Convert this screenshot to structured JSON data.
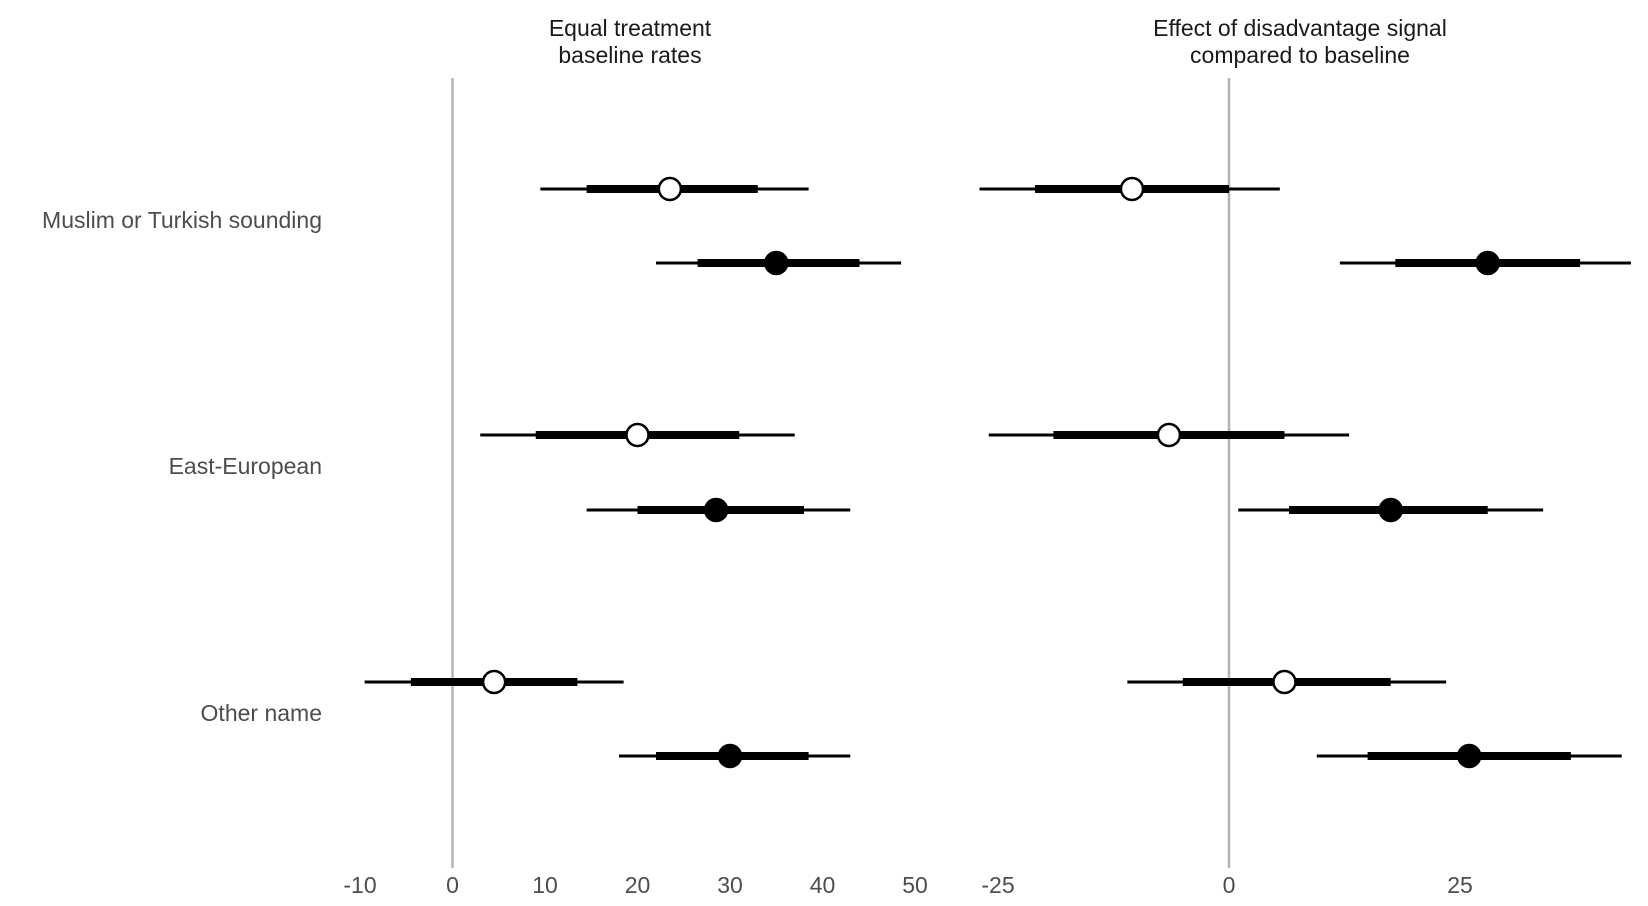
{
  "chart_data": [
    {
      "type": "scatter",
      "subtype": "interval-dot",
      "title": "Equal treatment\nbaseline rates",
      "xlim": [
        -10,
        50
      ],
      "xticks": [
        -10,
        0,
        10,
        20,
        30,
        40,
        50
      ],
      "categories": [
        "Muslim or Turkish sounding",
        "East-European",
        "Other name"
      ],
      "series": [
        {
          "marker": "open-circle",
          "values": [
            23.5,
            20,
            4.5
          ],
          "inner_interval": [
            [
              14.5,
              33
            ],
            [
              9,
              31
            ],
            [
              -4.5,
              13.5
            ]
          ],
          "outer_interval": [
            [
              9.5,
              38.5
            ],
            [
              3,
              37
            ],
            [
              -9.5,
              18.5
            ]
          ]
        },
        {
          "marker": "filled-circle",
          "values": [
            35,
            28.5,
            30
          ],
          "inner_interval": [
            [
              26.5,
              44
            ],
            [
              20,
              38
            ],
            [
              22,
              38.5
            ]
          ],
          "outer_interval": [
            [
              22,
              48.5
            ],
            [
              14.5,
              43
            ],
            [
              18,
              43
            ]
          ]
        }
      ],
      "reference_line": 0
    },
    {
      "type": "scatter",
      "subtype": "interval-dot",
      "title": "Effect of disadvantage signal\ncompared to baseline",
      "xlim": [
        -27,
        43.5
      ],
      "xticks": [
        -25,
        0,
        25
      ],
      "categories": [
        "Muslim or Turkish sounding",
        "East-European",
        "Other name"
      ],
      "series": [
        {
          "marker": "open-circle",
          "values": [
            -10.5,
            -6.5,
            6
          ],
          "inner_interval": [
            [
              -21,
              0
            ],
            [
              -19,
              6
            ],
            [
              -5,
              17.5
            ]
          ],
          "outer_interval": [
            [
              -27,
              5.5
            ],
            [
              -26,
              13
            ],
            [
              -11,
              23.5
            ]
          ]
        },
        {
          "marker": "filled-circle",
          "values": [
            28,
            17.5,
            26
          ],
          "inner_interval": [
            [
              18,
              38
            ],
            [
              6.5,
              28
            ],
            [
              15,
              37
            ]
          ],
          "outer_interval": [
            [
              12,
              43.5
            ],
            [
              1,
              34
            ],
            [
              9.5,
              42.5
            ]
          ]
        }
      ],
      "reference_line": 0
    }
  ]
}
